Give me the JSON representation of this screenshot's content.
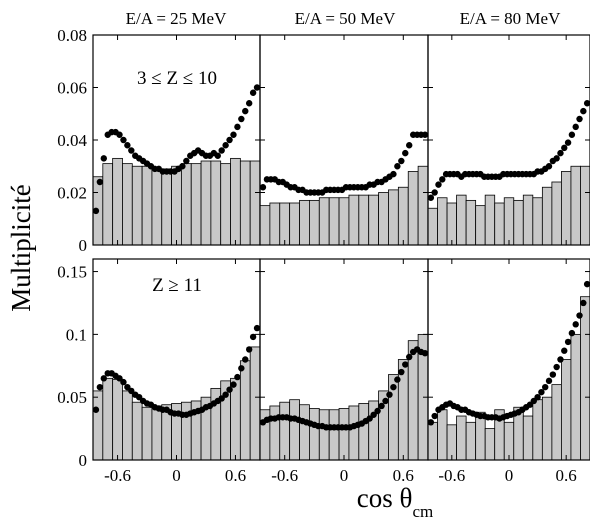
{
  "chart_data": [
    {
      "type": "bar",
      "title": "E/A = 25 MeV",
      "annotation": "3 ≤ Z ≤ 10",
      "xlim": [
        -0.85,
        0.85
      ],
      "ylim": [
        0,
        0.08
      ],
      "yticks": [
        "0",
        "0.02",
        "0.04",
        "0.06",
        "0.08"
      ],
      "series": [
        {
          "name": "",
          "style": "gray-filled-histogram",
          "x": [
            -0.8,
            -0.7,
            -0.6,
            -0.5,
            -0.4,
            -0.3,
            -0.2,
            -0.1,
            0.0,
            0.1,
            0.2,
            0.3,
            0.4,
            0.5,
            0.6,
            0.7,
            0.8
          ],
          "values": [
            0.026,
            0.031,
            0.033,
            0.031,
            0.03,
            0.03,
            0.029,
            0.029,
            0.03,
            0.031,
            0.031,
            0.032,
            0.032,
            0.031,
            0.033,
            0.032,
            0.032
          ]
        },
        {
          "name": "",
          "style": "black-dots",
          "x": [
            -0.82,
            -0.78,
            -0.74,
            -0.7,
            -0.66,
            -0.62,
            -0.58,
            -0.54,
            -0.5,
            -0.46,
            -0.42,
            -0.38,
            -0.34,
            -0.3,
            -0.26,
            -0.22,
            -0.18,
            -0.14,
            -0.1,
            -0.06,
            -0.02,
            0.02,
            0.06,
            0.1,
            0.14,
            0.18,
            0.22,
            0.26,
            0.3,
            0.34,
            0.38,
            0.42,
            0.46,
            0.5,
            0.54,
            0.58,
            0.62,
            0.66,
            0.7,
            0.74,
            0.78,
            0.82
          ],
          "values": [
            0.013,
            0.024,
            0.033,
            0.042,
            0.043,
            0.043,
            0.042,
            0.04,
            0.038,
            0.036,
            0.034,
            0.033,
            0.032,
            0.031,
            0.03,
            0.029,
            0.029,
            0.028,
            0.028,
            0.028,
            0.028,
            0.029,
            0.03,
            0.032,
            0.034,
            0.035,
            0.036,
            0.035,
            0.034,
            0.034,
            0.035,
            0.034,
            0.036,
            0.038,
            0.04,
            0.042,
            0.045,
            0.048,
            0.051,
            0.054,
            0.058,
            0.06
          ]
        }
      ]
    },
    {
      "type": "bar",
      "title": "E/A = 50 MeV",
      "annotation": "",
      "xlim": [
        -0.85,
        0.85
      ],
      "ylim": [
        0,
        0.08
      ],
      "series": [
        {
          "name": "",
          "style": "gray-filled-histogram",
          "x": [
            -0.8,
            -0.7,
            -0.6,
            -0.5,
            -0.4,
            -0.3,
            -0.2,
            -0.1,
            0.0,
            0.1,
            0.2,
            0.3,
            0.4,
            0.5,
            0.6,
            0.7,
            0.8
          ],
          "values": [
            0.015,
            0.016,
            0.016,
            0.016,
            0.017,
            0.017,
            0.018,
            0.018,
            0.018,
            0.019,
            0.019,
            0.019,
            0.02,
            0.021,
            0.022,
            0.028,
            0.03
          ]
        },
        {
          "name": "",
          "style": "black-dots",
          "x": [
            -0.82,
            -0.78,
            -0.74,
            -0.7,
            -0.66,
            -0.62,
            -0.58,
            -0.54,
            -0.5,
            -0.46,
            -0.42,
            -0.38,
            -0.34,
            -0.3,
            -0.26,
            -0.22,
            -0.18,
            -0.14,
            -0.1,
            -0.06,
            -0.02,
            0.02,
            0.06,
            0.1,
            0.14,
            0.18,
            0.22,
            0.26,
            0.3,
            0.34,
            0.38,
            0.42,
            0.46,
            0.5,
            0.54,
            0.58,
            0.62,
            0.66,
            0.7,
            0.74,
            0.78,
            0.82
          ],
          "values": [
            0.022,
            0.025,
            0.025,
            0.025,
            0.024,
            0.024,
            0.023,
            0.022,
            0.022,
            0.021,
            0.021,
            0.02,
            0.02,
            0.02,
            0.02,
            0.02,
            0.021,
            0.021,
            0.021,
            0.021,
            0.021,
            0.022,
            0.022,
            0.022,
            0.022,
            0.022,
            0.022,
            0.023,
            0.023,
            0.024,
            0.024,
            0.025,
            0.026,
            0.027,
            0.03,
            0.032,
            0.035,
            0.038,
            0.042,
            0.042,
            0.042,
            0.042
          ]
        }
      ]
    },
    {
      "type": "bar",
      "title": "E/A = 80 MeV",
      "annotation": "",
      "xlim": [
        -0.85,
        0.85
      ],
      "ylim": [
        0,
        0.08
      ],
      "series": [
        {
          "name": "",
          "style": "gray-filled-histogram",
          "x": [
            -0.8,
            -0.7,
            -0.6,
            -0.5,
            -0.4,
            -0.3,
            -0.2,
            -0.1,
            0.0,
            0.1,
            0.2,
            0.3,
            0.4,
            0.5,
            0.6,
            0.7,
            0.8
          ],
          "values": [
            0.014,
            0.018,
            0.016,
            0.019,
            0.017,
            0.015,
            0.019,
            0.016,
            0.018,
            0.017,
            0.019,
            0.018,
            0.022,
            0.024,
            0.028,
            0.03,
            0.03
          ]
        },
        {
          "name": "",
          "style": "black-dots",
          "x": [
            -0.82,
            -0.78,
            -0.74,
            -0.7,
            -0.66,
            -0.62,
            -0.58,
            -0.54,
            -0.5,
            -0.46,
            -0.42,
            -0.38,
            -0.34,
            -0.3,
            -0.26,
            -0.22,
            -0.18,
            -0.14,
            -0.1,
            -0.06,
            -0.02,
            0.02,
            0.06,
            0.1,
            0.14,
            0.18,
            0.22,
            0.26,
            0.3,
            0.34,
            0.38,
            0.42,
            0.46,
            0.5,
            0.54,
            0.58,
            0.62,
            0.66,
            0.7,
            0.74,
            0.78,
            0.82
          ],
          "values": [
            0.018,
            0.02,
            0.023,
            0.025,
            0.027,
            0.027,
            0.027,
            0.027,
            0.026,
            0.027,
            0.027,
            0.027,
            0.027,
            0.027,
            0.026,
            0.026,
            0.026,
            0.026,
            0.026,
            0.027,
            0.027,
            0.027,
            0.027,
            0.027,
            0.027,
            0.027,
            0.027,
            0.027,
            0.028,
            0.028,
            0.029,
            0.03,
            0.032,
            0.033,
            0.035,
            0.037,
            0.039,
            0.042,
            0.045,
            0.048,
            0.051,
            0.054
          ]
        }
      ]
    },
    {
      "type": "bar",
      "title": "",
      "annotation": "Z ≥ 11",
      "xlim": [
        -0.85,
        0.85
      ],
      "ylim": [
        0,
        0.16
      ],
      "yticks": [
        "0",
        "0.05",
        "0.1",
        "0.15"
      ],
      "xticks": [
        "-0.6",
        "0",
        "0.6"
      ],
      "series": [
        {
          "name": "",
          "style": "gray-filled-histogram",
          "x": [
            -0.8,
            -0.7,
            -0.6,
            -0.5,
            -0.4,
            -0.3,
            -0.2,
            -0.1,
            0.0,
            0.1,
            0.2,
            0.3,
            0.4,
            0.5,
            0.6,
            0.7,
            0.8
          ],
          "values": [
            0.055,
            0.065,
            0.064,
            0.055,
            0.046,
            0.042,
            0.043,
            0.044,
            0.045,
            0.046,
            0.047,
            0.05,
            0.057,
            0.063,
            0.065,
            0.079,
            0.09
          ]
        },
        {
          "name": "",
          "style": "black-dots",
          "x": [
            -0.82,
            -0.78,
            -0.74,
            -0.7,
            -0.66,
            -0.62,
            -0.58,
            -0.54,
            -0.5,
            -0.46,
            -0.42,
            -0.38,
            -0.34,
            -0.3,
            -0.26,
            -0.22,
            -0.18,
            -0.14,
            -0.1,
            -0.06,
            -0.02,
            0.02,
            0.06,
            0.1,
            0.14,
            0.18,
            0.22,
            0.26,
            0.3,
            0.34,
            0.38,
            0.42,
            0.46,
            0.5,
            0.54,
            0.58,
            0.62,
            0.66,
            0.7,
            0.74,
            0.78,
            0.82
          ],
          "values": [
            0.04,
            0.058,
            0.065,
            0.069,
            0.069,
            0.067,
            0.065,
            0.062,
            0.058,
            0.055,
            0.052,
            0.05,
            0.047,
            0.045,
            0.044,
            0.042,
            0.041,
            0.04,
            0.04,
            0.038,
            0.037,
            0.037,
            0.036,
            0.036,
            0.037,
            0.038,
            0.039,
            0.04,
            0.042,
            0.043,
            0.045,
            0.047,
            0.049,
            0.052,
            0.056,
            0.06,
            0.066,
            0.073,
            0.08,
            0.088,
            0.098,
            0.105
          ]
        }
      ]
    },
    {
      "type": "bar",
      "title": "",
      "annotation": "",
      "xlim": [
        -0.85,
        0.85
      ],
      "ylim": [
        0,
        0.16
      ],
      "xticks": [
        "-0.6",
        "0",
        "0.6"
      ],
      "series": [
        {
          "name": "",
          "style": "gray-filled-histogram",
          "x": [
            -0.8,
            -0.7,
            -0.6,
            -0.5,
            -0.4,
            -0.3,
            -0.2,
            -0.1,
            0.0,
            0.1,
            0.2,
            0.3,
            0.4,
            0.5,
            0.6,
            0.7,
            0.8
          ],
          "values": [
            0.04,
            0.043,
            0.046,
            0.048,
            0.044,
            0.041,
            0.04,
            0.04,
            0.041,
            0.043,
            0.045,
            0.047,
            0.055,
            0.068,
            0.08,
            0.095,
            0.1
          ]
        },
        {
          "name": "",
          "style": "black-dots",
          "x": [
            -0.82,
            -0.78,
            -0.74,
            -0.7,
            -0.66,
            -0.62,
            -0.58,
            -0.54,
            -0.5,
            -0.46,
            -0.42,
            -0.38,
            -0.34,
            -0.3,
            -0.26,
            -0.22,
            -0.18,
            -0.14,
            -0.1,
            -0.06,
            -0.02,
            0.02,
            0.06,
            0.1,
            0.14,
            0.18,
            0.22,
            0.26,
            0.3,
            0.34,
            0.38,
            0.42,
            0.46,
            0.5,
            0.54,
            0.58,
            0.62,
            0.66,
            0.7,
            0.74,
            0.78,
            0.82
          ],
          "values": [
            0.03,
            0.032,
            0.033,
            0.033,
            0.034,
            0.034,
            0.034,
            0.033,
            0.033,
            0.032,
            0.031,
            0.03,
            0.029,
            0.028,
            0.027,
            0.027,
            0.026,
            0.026,
            0.026,
            0.026,
            0.026,
            0.026,
            0.026,
            0.027,
            0.028,
            0.029,
            0.031,
            0.033,
            0.036,
            0.039,
            0.043,
            0.047,
            0.052,
            0.058,
            0.064,
            0.07,
            0.076,
            0.082,
            0.086,
            0.088,
            0.086,
            0.085
          ]
        }
      ]
    },
    {
      "type": "bar",
      "title": "",
      "annotation": "",
      "xlim": [
        -0.85,
        0.85
      ],
      "ylim": [
        0,
        0.16
      ],
      "xticks": [
        "-0.6",
        "0",
        "0.6"
      ],
      "series": [
        {
          "name": "",
          "style": "gray-filled-histogram",
          "x": [
            -0.8,
            -0.7,
            -0.6,
            -0.5,
            -0.4,
            -0.3,
            -0.2,
            -0.1,
            0.0,
            0.1,
            0.2,
            0.3,
            0.4,
            0.5,
            0.6,
            0.7,
            0.8
          ],
          "values": [
            0.03,
            0.04,
            0.028,
            0.035,
            0.03,
            0.038,
            0.025,
            0.04,
            0.03,
            0.042,
            0.035,
            0.048,
            0.05,
            0.06,
            0.08,
            0.1,
            0.13
          ]
        },
        {
          "name": "",
          "style": "black-dots",
          "x": [
            -0.82,
            -0.78,
            -0.74,
            -0.7,
            -0.66,
            -0.62,
            -0.58,
            -0.54,
            -0.5,
            -0.46,
            -0.42,
            -0.38,
            -0.34,
            -0.3,
            -0.26,
            -0.22,
            -0.18,
            -0.14,
            -0.1,
            -0.06,
            -0.02,
            0.02,
            0.06,
            0.1,
            0.14,
            0.18,
            0.22,
            0.26,
            0.3,
            0.34,
            0.38,
            0.42,
            0.46,
            0.5,
            0.54,
            0.58,
            0.62,
            0.66,
            0.7,
            0.74,
            0.78,
            0.82
          ],
          "values": [
            0.03,
            0.035,
            0.04,
            0.042,
            0.044,
            0.045,
            0.043,
            0.042,
            0.04,
            0.04,
            0.038,
            0.037,
            0.036,
            0.035,
            0.035,
            0.034,
            0.034,
            0.034,
            0.033,
            0.034,
            0.035,
            0.036,
            0.037,
            0.038,
            0.04,
            0.042,
            0.044,
            0.047,
            0.05,
            0.054,
            0.058,
            0.063,
            0.068,
            0.074,
            0.08,
            0.087,
            0.094,
            0.101,
            0.108,
            0.115,
            0.125,
            0.14
          ]
        }
      ]
    }
  ],
  "figure": {
    "ylabel": "Multiplicité",
    "xlabel_main": "cos  θ",
    "xlabel_sub": "cm",
    "colors": {
      "histogram_fill": "#c8c8c8",
      "histogram_edge": "#000000",
      "points": "#000000",
      "frame": "#000000"
    }
  }
}
